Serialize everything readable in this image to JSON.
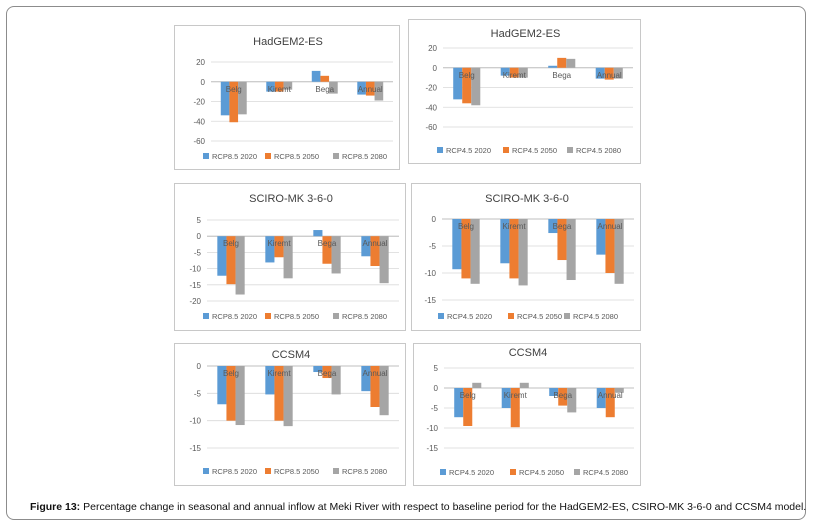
{
  "colors": {
    "series": [
      "#5b9bd5",
      "#ed7d31",
      "#a5a5a5"
    ],
    "grid": "#d9d9d9",
    "axis": "#bfbfbf",
    "text": "#595959",
    "title": "#404040"
  },
  "caption": {
    "label": "Figure 13:",
    "text": " Percentage change in seasonal and annual inflow at Meki River with respect to baseline period for the HadGEM2-ES, CSIRO-MK 3-6-0 and CCSM4 model."
  },
  "chart_data": [
    {
      "type": "bar",
      "title": "HadGEM2-ES",
      "categories": [
        "Belg",
        "Kiremt",
        "Bega",
        "Annual"
      ],
      "y_ticks": [
        20,
        0,
        -20,
        -40,
        -60
      ],
      "ylim": [
        -60,
        20
      ],
      "grid": true,
      "legend": "bottom",
      "series": [
        {
          "name": "RCP8.5 2020",
          "values": [
            -34,
            -10,
            11,
            -13
          ]
        },
        {
          "name": "RCP8.5 2050",
          "values": [
            -41,
            -10,
            6,
            -14
          ]
        },
        {
          "name": "RCP8.5 2080",
          "values": [
            -33,
            -8,
            -12,
            -19
          ]
        }
      ]
    },
    {
      "type": "bar",
      "title": "HadGEM2-ES",
      "categories": [
        "Belg",
        "Kiremt",
        "Bega",
        "Annual"
      ],
      "y_ticks": [
        20,
        0,
        -20,
        -40,
        -60
      ],
      "ylim": [
        -60,
        20
      ],
      "grid": true,
      "legend": "bottom",
      "series": [
        {
          "name": "RCP4.5 2020",
          "values": [
            -32,
            -8,
            2,
            -11
          ]
        },
        {
          "name": "RCP4.5 2050",
          "values": [
            -36,
            -10,
            10,
            -12
          ]
        },
        {
          "name": "RCP4.5 2080",
          "values": [
            -38,
            -10,
            9,
            -11
          ]
        }
      ]
    },
    {
      "type": "bar",
      "title": "SCIRO-MK 3-6-0",
      "categories": [
        "Belg",
        "Kiremt",
        "Bega",
        "Annual"
      ],
      "y_ticks": [
        5,
        0,
        -5,
        -10,
        -15,
        -20
      ],
      "ylim": [
        -20,
        5
      ],
      "grid": true,
      "legend": "bottom",
      "series": [
        {
          "name": "RCP8.5 2020",
          "values": [
            -12.2,
            -8.1,
            1.9,
            -6.2
          ]
        },
        {
          "name": "RCP8.5 2050",
          "values": [
            -14.8,
            -6.5,
            -8.5,
            -9.2
          ]
        },
        {
          "name": "RCP8.5 2080",
          "values": [
            -18.0,
            -13.0,
            -11.5,
            -14.5
          ]
        }
      ]
    },
    {
      "type": "bar",
      "title": "SCIRO-MK 3-6-0",
      "categories": [
        "Belg",
        "Kiremt",
        "Bega",
        "Annual"
      ],
      "y_ticks": [
        0,
        -5,
        -10,
        -15
      ],
      "ylim": [
        -15,
        0
      ],
      "grid": true,
      "legend": "bottom",
      "series": [
        {
          "name": "RCP4.5 2020",
          "values": [
            -9.3,
            -8.2,
            -2.6,
            -6.6
          ]
        },
        {
          "name": "RCP4.5 2050",
          "values": [
            -11.0,
            -11.0,
            -7.6,
            -10.0
          ]
        },
        {
          "name": "RCP4.5 2080",
          "values": [
            -12.0,
            -12.3,
            -11.3,
            -12.0
          ]
        }
      ]
    },
    {
      "type": "bar",
      "title": "CCSM4",
      "categories": [
        "Belg",
        "Kiremt",
        "Bega",
        "Annual"
      ],
      "y_ticks": [
        0,
        -5,
        -10,
        -15
      ],
      "ylim": [
        -15,
        0
      ],
      "grid": true,
      "legend": "bottom",
      "series": [
        {
          "name": "RCP8.5 2020",
          "values": [
            -7.0,
            -5.2,
            -1.1,
            -4.6
          ]
        },
        {
          "name": "RCP8.5 2050",
          "values": [
            -10.0,
            -10.0,
            -2.2,
            -7.5
          ]
        },
        {
          "name": "RCP8.5 2080",
          "values": [
            -10.8,
            -11.0,
            -5.2,
            -9.0
          ]
        }
      ]
    },
    {
      "type": "bar",
      "title": "CCSM4",
      "categories": [
        "Belg",
        "Kiremt",
        "Bega",
        "Annual"
      ],
      "y_ticks": [
        5,
        0,
        -5,
        -10,
        -15
      ],
      "ylim": [
        -15,
        5
      ],
      "grid": true,
      "legend": "bottom",
      "series": [
        {
          "name": "RCP4.5 2020",
          "values": [
            -7.3,
            -5.0,
            -2.0,
            -5.0
          ]
        },
        {
          "name": "RCP4.5 2050",
          "values": [
            -9.5,
            -9.8,
            -4.4,
            -7.3
          ]
        },
        {
          "name": "RCP4.5 2080",
          "values": [
            1.3,
            1.3,
            -6.1,
            -1.2
          ]
        }
      ]
    }
  ]
}
